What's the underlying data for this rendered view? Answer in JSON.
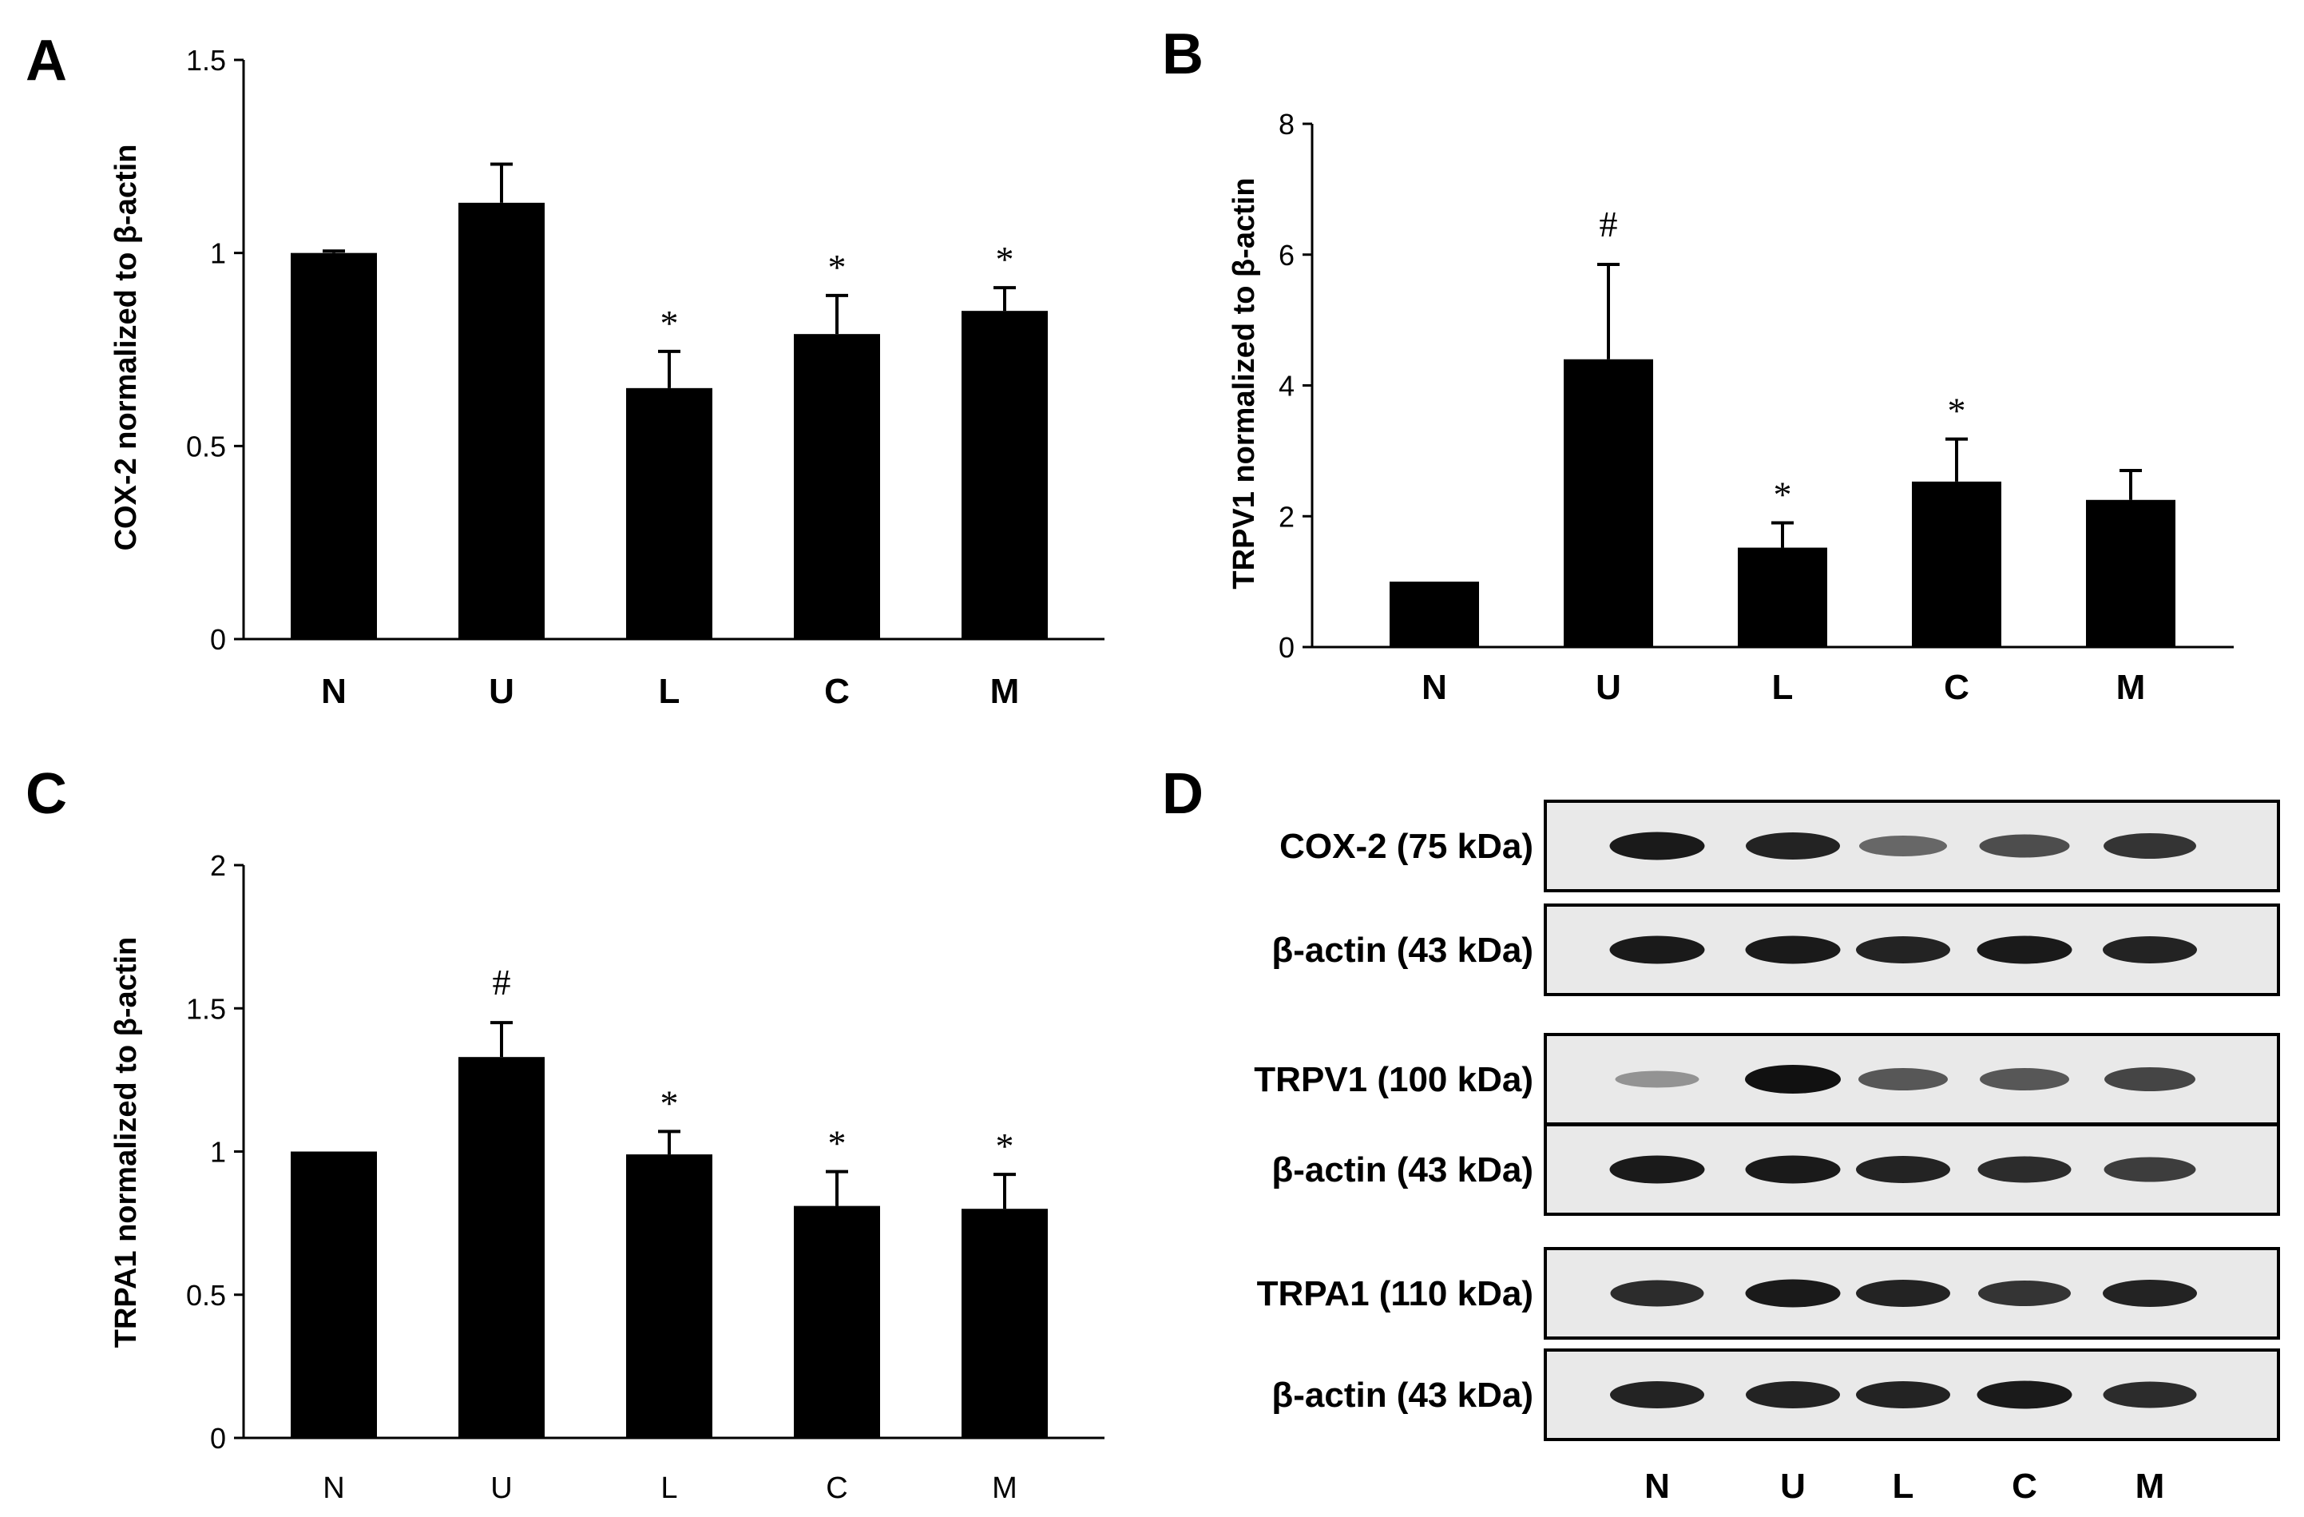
{
  "panel_letters": [
    "A",
    "B",
    "C",
    "D"
  ],
  "chart_data": [
    {
      "type": "bar",
      "panel": "A",
      "ylabel": "COX-2 normalized to β-actin",
      "categories": [
        "N",
        "U",
        "L",
        "C",
        "M"
      ],
      "values": [
        1.0,
        1.13,
        0.65,
        0.79,
        0.85
      ],
      "errors": [
        0.005,
        0.1,
        0.095,
        0.1,
        0.06
      ],
      "annotations": [
        "",
        "",
        "*",
        "*",
        "*"
      ],
      "ylim": [
        0,
        1.5
      ],
      "yticks": [
        0,
        0.5,
        1,
        1.5
      ],
      "ytick_labels": [
        "0",
        "0.5",
        "1",
        "1.5"
      ]
    },
    {
      "type": "bar",
      "panel": "B",
      "ylabel": "TRPV1 normalized to β-actin",
      "categories": [
        "N",
        "U",
        "L",
        "C",
        "M"
      ],
      "values": [
        1.0,
        4.4,
        1.52,
        2.53,
        2.25
      ],
      "errors": [
        0,
        1.45,
        0.38,
        0.65,
        0.45
      ],
      "annotations": [
        "",
        "#",
        "*",
        "*",
        ""
      ],
      "ylim": [
        0,
        8
      ],
      "yticks": [
        0,
        2,
        4,
        6,
        8
      ],
      "ytick_labels": [
        "0",
        "2",
        "4",
        "6",
        "8"
      ]
    },
    {
      "type": "bar",
      "panel": "C",
      "ylabel": "TRPA1 normalized to β-actin",
      "categories": [
        "N",
        "U",
        "L",
        "C",
        "M"
      ],
      "values": [
        1.0,
        1.33,
        0.99,
        0.81,
        0.8
      ],
      "errors": [
        0,
        0.12,
        0.08,
        0.12,
        0.12
      ],
      "annotations": [
        "",
        "#",
        "*",
        "*",
        "*"
      ],
      "ylim": [
        0,
        2
      ],
      "yticks": [
        0,
        0.5,
        1,
        1.5,
        2
      ],
      "ytick_labels": [
        "0",
        "0.5",
        "1",
        "1.5",
        "2"
      ]
    }
  ],
  "western_blot": {
    "lanes": [
      "N",
      "U",
      "L",
      "C",
      "M"
    ],
    "rows": [
      {
        "label": "COX-2 (75 kDa)",
        "intensities": [
          0.95,
          0.9,
          0.5,
          0.65,
          0.8
        ]
      },
      {
        "label": "β-actin (43 kDa)",
        "intensities": [
          0.95,
          0.95,
          0.9,
          0.95,
          0.9
        ]
      },
      {
        "label": "TRPV1 (100 kDa)",
        "intensities": [
          0.25,
          1.0,
          0.6,
          0.6,
          0.7
        ]
      },
      {
        "label": "β-actin (43 kDa)",
        "intensities": [
          0.95,
          0.95,
          0.9,
          0.85,
          0.75
        ]
      },
      {
        "label": "TRPA1 (110 kDa)",
        "intensities": [
          0.85,
          0.95,
          0.9,
          0.8,
          0.9
        ]
      },
      {
        "label": "β-actin (43 kDa)",
        "intensities": [
          0.9,
          0.9,
          0.9,
          0.95,
          0.85
        ]
      }
    ]
  },
  "colors": {
    "bar": "#000000",
    "blot_bg": "#e9e9e9",
    "band": "#111111"
  }
}
